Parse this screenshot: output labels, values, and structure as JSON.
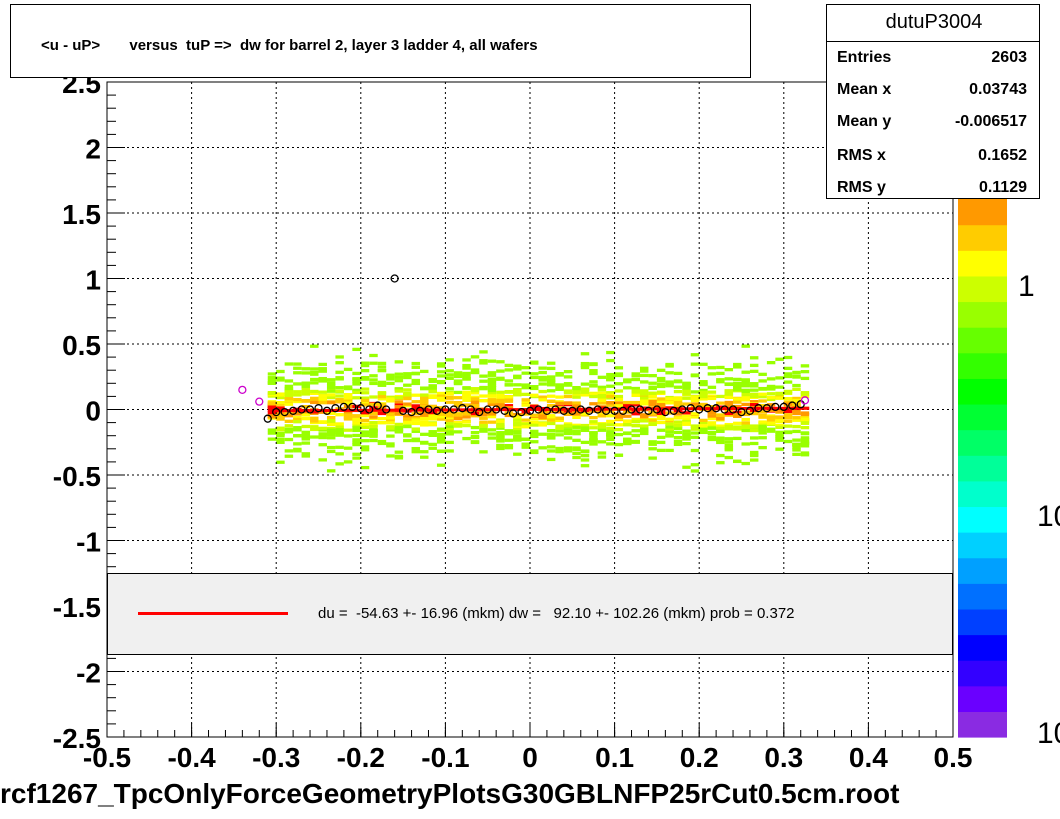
{
  "title": "<u - uP>       versus  tuP =>  dw for barrel 2, layer 3 ladder 4, all wafers",
  "stats": {
    "name": "dutuP3004",
    "rows": [
      {
        "label": "Entries",
        "value": "2603"
      },
      {
        "label": "Mean x",
        "value": "0.03743"
      },
      {
        "label": "Mean y",
        "value": "-0.006517"
      },
      {
        "label": "RMS x",
        "value": "0.1652"
      },
      {
        "label": "RMS y",
        "value": "0.1129"
      }
    ]
  },
  "legend": {
    "text": "du =  -54.63 +- 16.96 (mkm) dw =   92.10 +- 102.26 (mkm) prob = 0.372",
    "line_color": "#ff0000"
  },
  "filename": "rcf1267_TpcOnlyForceGeometryPlotsG30GBLNFP25rCut0.5cm.root",
  "colorbar": {
    "labels": [
      "1",
      "10",
      "10"
    ],
    "palette": [
      "#8a2be2",
      "#6a00ff",
      "#3300ff",
      "#0000ff",
      "#0040ff",
      "#0070ff",
      "#00a0ff",
      "#00d0ff",
      "#00ffff",
      "#00ffcc",
      "#00ff99",
      "#00ff66",
      "#00ff33",
      "#00ff00",
      "#33ff00",
      "#66ff00",
      "#99ff00",
      "#ccff00",
      "#ffff00",
      "#ffcc00",
      "#ff9900"
    ]
  },
  "chart_data": {
    "type": "heatmap",
    "title": "<u - uP>       versus  tuP =>  dw for barrel 2, layer 3 ladder 4, all wafers",
    "xlabel": "",
    "ylabel": "",
    "xlim": [
      -0.5,
      0.5
    ],
    "ylim": [
      -2.5,
      2.5
    ],
    "x_ticks": [
      "-0.5",
      "-0.4",
      "-0.3",
      "-0.2",
      "-0.1",
      "0",
      "0.1",
      "0.2",
      "0.3",
      "0.4",
      "0.5"
    ],
    "y_ticks": [
      "-2.5",
      "-2",
      "-1.5",
      "-1",
      "-0.5",
      "0",
      "0.5",
      "1",
      "1.5",
      "2",
      "2.5"
    ],
    "grid": true,
    "band": {
      "x_range": [
        -0.31,
        0.33
      ],
      "y_center": 0.0,
      "y_spread": 0.35
    },
    "profile_points": [
      {
        "x": -0.34,
        "y": 0.15,
        "color": "#cc00cc"
      },
      {
        "x": -0.32,
        "y": 0.06,
        "color": "#cc00cc"
      },
      {
        "x": -0.31,
        "y": -0.07,
        "color": "#000000"
      },
      {
        "x": -0.3,
        "y": -0.02,
        "color": "#000000"
      },
      {
        "x": -0.29,
        "y": -0.02,
        "color": "#000000"
      },
      {
        "x": -0.28,
        "y": -0.01,
        "color": "#000000"
      },
      {
        "x": -0.27,
        "y": 0.0,
        "color": "#000000"
      },
      {
        "x": -0.26,
        "y": 0.0,
        "color": "#000000"
      },
      {
        "x": -0.25,
        "y": 0.01,
        "color": "#000000"
      },
      {
        "x": -0.24,
        "y": -0.01,
        "color": "#000000"
      },
      {
        "x": -0.23,
        "y": 0.01,
        "color": "#000000"
      },
      {
        "x": -0.22,
        "y": 0.02,
        "color": "#000000"
      },
      {
        "x": -0.21,
        "y": 0.02,
        "color": "#000000"
      },
      {
        "x": -0.2,
        "y": 0.01,
        "color": "#000000"
      },
      {
        "x": -0.19,
        "y": 0.0,
        "color": "#000000"
      },
      {
        "x": -0.18,
        "y": 0.03,
        "color": "#000000"
      },
      {
        "x": -0.17,
        "y": 0.0,
        "color": "#000000"
      },
      {
        "x": -0.16,
        "y": 1.0,
        "color": "#000000"
      },
      {
        "x": -0.15,
        "y": -0.01,
        "color": "#000000"
      },
      {
        "x": -0.14,
        "y": -0.02,
        "color": "#000000"
      },
      {
        "x": -0.13,
        "y": -0.01,
        "color": "#000000"
      },
      {
        "x": -0.12,
        "y": 0.0,
        "color": "#000000"
      },
      {
        "x": -0.11,
        "y": -0.01,
        "color": "#000000"
      },
      {
        "x": -0.1,
        "y": 0.0,
        "color": "#000000"
      },
      {
        "x": -0.09,
        "y": 0.0,
        "color": "#000000"
      },
      {
        "x": -0.08,
        "y": 0.01,
        "color": "#000000"
      },
      {
        "x": -0.07,
        "y": 0.0,
        "color": "#000000"
      },
      {
        "x": -0.06,
        "y": -0.02,
        "color": "#000000"
      },
      {
        "x": -0.05,
        "y": 0.0,
        "color": "#000000"
      },
      {
        "x": -0.04,
        "y": 0.0,
        "color": "#000000"
      },
      {
        "x": -0.03,
        "y": -0.01,
        "color": "#000000"
      },
      {
        "x": -0.02,
        "y": -0.03,
        "color": "#000000"
      },
      {
        "x": -0.01,
        "y": -0.02,
        "color": "#000000"
      },
      {
        "x": 0.0,
        "y": -0.01,
        "color": "#000000"
      },
      {
        "x": 0.01,
        "y": 0.0,
        "color": "#000000"
      },
      {
        "x": 0.02,
        "y": -0.01,
        "color": "#000000"
      },
      {
        "x": 0.03,
        "y": 0.0,
        "color": "#000000"
      },
      {
        "x": 0.04,
        "y": -0.01,
        "color": "#000000"
      },
      {
        "x": 0.05,
        "y": -0.01,
        "color": "#000000"
      },
      {
        "x": 0.06,
        "y": 0.0,
        "color": "#000000"
      },
      {
        "x": 0.07,
        "y": -0.01,
        "color": "#000000"
      },
      {
        "x": 0.08,
        "y": 0.0,
        "color": "#000000"
      },
      {
        "x": 0.09,
        "y": -0.01,
        "color": "#000000"
      },
      {
        "x": 0.1,
        "y": -0.01,
        "color": "#000000"
      },
      {
        "x": 0.11,
        "y": -0.01,
        "color": "#000000"
      },
      {
        "x": 0.12,
        "y": 0.0,
        "color": "#000000"
      },
      {
        "x": 0.13,
        "y": 0.0,
        "color": "#000000"
      },
      {
        "x": 0.14,
        "y": -0.01,
        "color": "#000000"
      },
      {
        "x": 0.15,
        "y": 0.0,
        "color": "#000000"
      },
      {
        "x": 0.16,
        "y": -0.02,
        "color": "#000000"
      },
      {
        "x": 0.17,
        "y": -0.01,
        "color": "#000000"
      },
      {
        "x": 0.18,
        "y": 0.0,
        "color": "#000000"
      },
      {
        "x": 0.19,
        "y": 0.01,
        "color": "#000000"
      },
      {
        "x": 0.2,
        "y": 0.0,
        "color": "#000000"
      },
      {
        "x": 0.21,
        "y": 0.01,
        "color": "#000000"
      },
      {
        "x": 0.22,
        "y": 0.01,
        "color": "#000000"
      },
      {
        "x": 0.23,
        "y": 0.0,
        "color": "#000000"
      },
      {
        "x": 0.24,
        "y": 0.0,
        "color": "#000000"
      },
      {
        "x": 0.25,
        "y": -0.02,
        "color": "#000000"
      },
      {
        "x": 0.26,
        "y": -0.01,
        "color": "#000000"
      },
      {
        "x": 0.27,
        "y": 0.01,
        "color": "#000000"
      },
      {
        "x": 0.28,
        "y": 0.01,
        "color": "#000000"
      },
      {
        "x": 0.29,
        "y": 0.02,
        "color": "#000000"
      },
      {
        "x": 0.3,
        "y": 0.02,
        "color": "#000000"
      },
      {
        "x": 0.31,
        "y": 0.03,
        "color": "#000000"
      },
      {
        "x": 0.32,
        "y": 0.04,
        "color": "#000000"
      },
      {
        "x": 0.325,
        "y": 0.07,
        "color": "#cc00cc"
      }
    ],
    "fit_line": {
      "x": [
        -0.31,
        0.33
      ],
      "y": [
        -0.01,
        0.01
      ],
      "color": "#ff0000"
    }
  }
}
